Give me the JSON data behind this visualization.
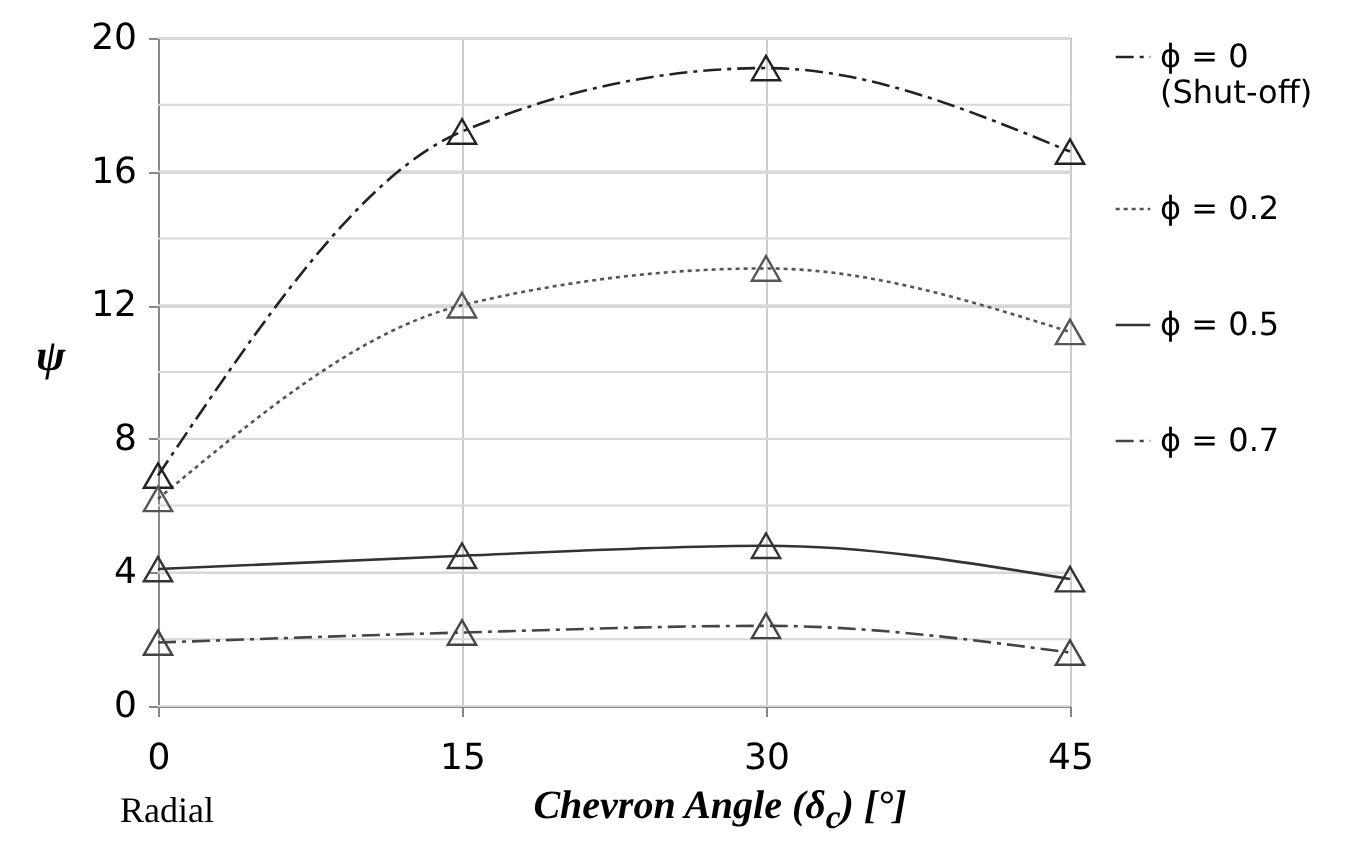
{
  "chart_data": {
    "type": "line",
    "xlabel": "Chevron Angle (δ$_{c}$) [°]",
    "ylabel": "ψ",
    "annotations": [
      "Radial"
    ],
    "x": [
      0,
      15,
      30,
      45
    ],
    "xlim": [
      0,
      45
    ],
    "xticks": [
      0,
      15,
      30,
      45
    ],
    "ylim": [
      0,
      20
    ],
    "yticks": [
      0,
      {
        "value": 2,
        "label": null
      },
      4,
      {
        "value": 6,
        "label": null
      },
      8,
      {
        "value": 10,
        "label": null
      },
      12,
      {
        "value": 14,
        "label": null
      },
      16,
      {
        "value": 18,
        "label": null
      },
      20
    ],
    "grid": true,
    "legend": "right",
    "marker": "triangle",
    "series": [
      {
        "name": "ϕ = 0 (Shut-off)",
        "color": "#222222",
        "line_style": "dashed",
        "values": [
          6.9,
          17.2,
          19.1,
          16.6
        ]
      },
      {
        "name": "ϕ = 0.2",
        "color": "#555555",
        "line_style": "dotted",
        "values": [
          6.2,
          12.0,
          13.1,
          11.2
        ]
      },
      {
        "name": "ϕ = 0.5",
        "color": "#333333",
        "line_style": "solid",
        "values": [
          4.1,
          4.5,
          4.8,
          3.8
        ]
      },
      {
        "name": "ϕ = 0.7",
        "color": "#444444",
        "line_style": "dashed",
        "values": [
          1.9,
          2.2,
          2.4,
          1.6
        ]
      }
    ]
  }
}
